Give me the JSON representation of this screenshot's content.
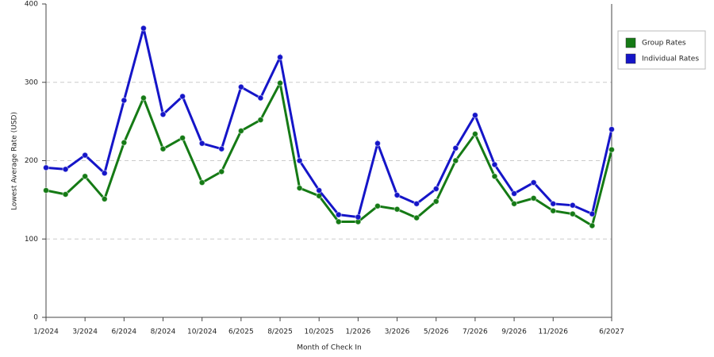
{
  "chart_data": {
    "type": "line",
    "xlabel": "Month of Check In",
    "ylabel": "Lowest Average Rate (USD)",
    "categories": [
      "1/2024",
      null,
      "3/2024",
      null,
      "6/2024",
      null,
      "8/2024",
      null,
      "10/2024",
      null,
      "6/2025",
      null,
      "8/2025",
      null,
      "10/2025",
      null,
      "1/2026",
      null,
      "3/2026",
      null,
      "5/2026",
      null,
      "7/2026",
      null,
      "9/2026",
      null,
      "11/2026",
      null,
      null,
      "6/2027"
    ],
    "series": [
      {
        "name": "Group Rates",
        "color": "#157a15",
        "values": [
          162,
          157,
          180,
          151,
          223,
          280,
          215,
          229,
          172,
          186,
          238,
          252,
          299,
          165,
          155,
          122,
          122,
          142,
          138,
          127,
          148,
          200,
          234,
          180,
          145,
          152,
          136,
          132,
          117,
          214
        ]
      },
      {
        "name": "Individual Rates",
        "color": "#1515c8",
        "values": [
          191,
          189,
          207,
          184,
          277,
          369,
          259,
          282,
          222,
          215,
          294,
          280,
          332,
          200,
          162,
          131,
          128,
          222,
          156,
          145,
          164,
          216,
          258,
          195,
          158,
          172,
          145,
          143,
          132,
          240
        ]
      }
    ],
    "ylim": [
      0,
      400
    ],
    "yticks": [
      0,
      100,
      200,
      300,
      400
    ],
    "grid": true,
    "legend": "right"
  }
}
